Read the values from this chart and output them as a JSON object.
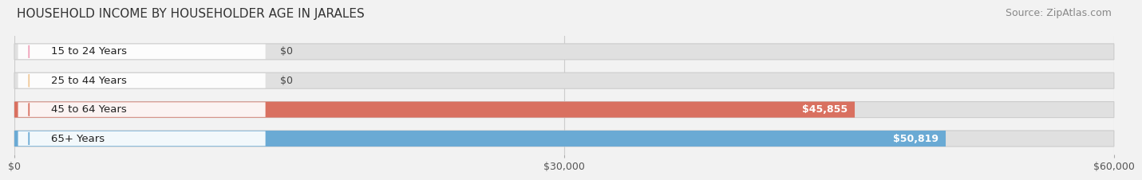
{
  "title": "HOUSEHOLD INCOME BY HOUSEHOLDER AGE IN JARALES",
  "source": "Source: ZipAtlas.com",
  "categories": [
    "15 to 24 Years",
    "25 to 44 Years",
    "45 to 64 Years",
    "65+ Years"
  ],
  "values": [
    0,
    0,
    45855,
    50819
  ],
  "bar_colors": [
    "#f0a0b8",
    "#f0c898",
    "#d97060",
    "#6aaad4"
  ],
  "label_colors": [
    "#333333",
    "#333333",
    "#ffffff",
    "#ffffff"
  ],
  "bar_labels": [
    "$0",
    "$0",
    "$45,855",
    "$50,819"
  ],
  "xlim": [
    0,
    60000
  ],
  "xticks": [
    0,
    30000,
    60000
  ],
  "xticklabels": [
    "$0",
    "$30,000",
    "$60,000"
  ],
  "background_color": "#f2f2f2",
  "bar_bg_color": "#e0e0e0",
  "title_fontsize": 11,
  "source_fontsize": 9,
  "tick_fontsize": 9,
  "bar_label_fontsize": 9,
  "category_fontsize": 9.5
}
